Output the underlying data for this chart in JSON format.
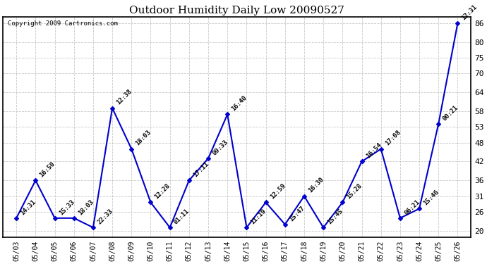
{
  "title": "Outdoor Humidity Daily Low 20090527",
  "copyright": "Copyright 2009 Cartronics.com",
  "line_color": "#0000CC",
  "background_color": "#ffffff",
  "plot_bg_color": "#ffffff",
  "grid_color": "#bbbbbb",
  "x_labels": [
    "05/03",
    "05/04",
    "05/05",
    "05/06",
    "05/07",
    "05/08",
    "05/09",
    "05/10",
    "05/11",
    "05/12",
    "05/13",
    "05/14",
    "05/15",
    "05/16",
    "05/17",
    "05/18",
    "05/19",
    "05/20",
    "05/21",
    "05/22",
    "05/23",
    "05/24",
    "05/25",
    "05/26"
  ],
  "y_values": [
    24,
    36,
    24,
    24,
    21,
    59,
    46,
    29,
    21,
    36,
    43,
    57,
    21,
    29,
    22,
    31,
    21,
    29,
    42,
    46,
    24,
    27,
    54,
    86
  ],
  "time_labels": [
    "14:31",
    "16:50",
    "15:33",
    "18:03",
    "22:33",
    "12:38",
    "18:03",
    "12:28",
    "01:11",
    "17:11",
    "09:33",
    "16:40",
    "11:19",
    "12:59",
    "15:47",
    "16:30",
    "15:45",
    "15:28",
    "16:54",
    "17:08",
    "06:21",
    "15:46",
    "00:21",
    "12:31"
  ],
  "y_ticks": [
    20,
    26,
    31,
    36,
    42,
    48,
    53,
    58,
    64,
    70,
    75,
    80,
    86
  ],
  "ylim": [
    18,
    88
  ],
  "title_fontsize": 11,
  "marker_size": 3,
  "label_fontsize": 6.5
}
